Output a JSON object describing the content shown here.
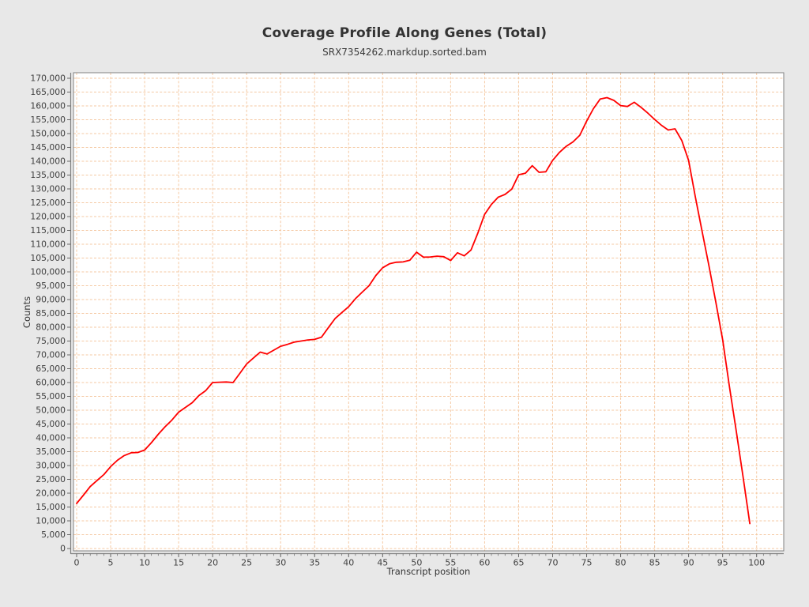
{
  "header": {
    "title": "Coverage Profile Along Genes (Total)",
    "subtitle": "SRX7354262.markdup.sorted.bam"
  },
  "colors": {
    "page_background": "#e8e8e8",
    "plot_background": "#ffffff",
    "line": "#ff0000",
    "grid": "#f5c9a3",
    "plot_border": "#7f7f7f",
    "axis": "#666666",
    "tick_text": "#404040",
    "title_text": "#333333"
  },
  "chart_data": {
    "type": "line",
    "title": "Coverage Profile Along Genes (Total)",
    "subtitle": "SRX7354262.markdup.sorted.bam",
    "xlabel": "Transcript position",
    "ylabel": "Counts",
    "xlim": [
      0,
      104.5
    ],
    "ylim": [
      0,
      170000
    ],
    "grid": true,
    "grid_style": "dashed",
    "legend": "none",
    "x_ticks": [
      0,
      5,
      10,
      15,
      20,
      25,
      30,
      35,
      40,
      45,
      50,
      55,
      60,
      65,
      70,
      75,
      80,
      85,
      90,
      95,
      100
    ],
    "y_ticks": [
      0,
      5000,
      10000,
      15000,
      20000,
      25000,
      30000,
      35000,
      40000,
      45000,
      50000,
      55000,
      60000,
      65000,
      70000,
      75000,
      80000,
      85000,
      90000,
      95000,
      100000,
      105000,
      110000,
      115000,
      120000,
      125000,
      130000,
      135000,
      140000,
      145000,
      150000,
      155000,
      160000,
      165000,
      170000
    ],
    "series": [
      {
        "name": "SRX7354262.markdup.sorted.bam",
        "x_start": 0,
        "x_step": 1,
        "values": [
          16300,
          19300,
          22400,
          24600,
          26700,
          29600,
          31900,
          33600,
          34600,
          34700,
          35600,
          38300,
          41300,
          44000,
          46400,
          49300,
          51000,
          52700,
          55300,
          57100,
          60000,
          60100,
          60200,
          60000,
          63300,
          66700,
          68900,
          71000,
          70300,
          71700,
          73100,
          73800,
          74600,
          75000,
          75400,
          75600,
          76400,
          79800,
          83100,
          85300,
          87400,
          90300,
          92700,
          95000,
          98700,
          101500,
          102900,
          103500,
          103600,
          104200,
          107100,
          105300,
          105400,
          105700,
          105500,
          104100,
          106900,
          105800,
          107900,
          114000,
          120800,
          124400,
          127000,
          128000,
          129900,
          135100,
          135700,
          138400,
          136000,
          136200,
          140300,
          143200,
          145400,
          147000,
          149400,
          154500,
          159000,
          162500,
          163000,
          162000,
          160100,
          159800,
          161300,
          159500,
          157400,
          155100,
          153000,
          151300,
          151700,
          147500,
          140300,
          127000,
          114500,
          102000,
          89000,
          75500,
          58500,
          42500,
          26000,
          9000
        ]
      }
    ]
  }
}
